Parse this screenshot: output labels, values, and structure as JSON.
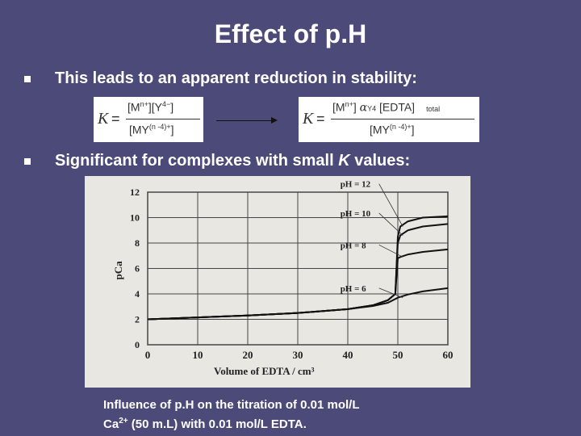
{
  "slide": {
    "title": "Effect of p.H",
    "bullet1": "This leads to an apparent reduction in stability:",
    "bullet2_before": "Significant for complexes with small ",
    "bullet2_k": "K",
    "bullet2_after": " values:",
    "caption_line1": "Influence of p.H on the titration of 0.01 mol/L",
    "caption_ca": "Ca",
    "caption_charge": "2+",
    "caption_line2_rest": " (50 m.L) with 0.01 mol/L EDTA."
  },
  "equations": {
    "left": {
      "k": "K",
      "eq": "=",
      "num_a": "[M",
      "num_a_sup": "n+",
      "num_b": "][Y",
      "num_b_sup": "4−",
      "num_c": "]",
      "den_a": "[MY",
      "den_sup": "(n  -4)+",
      "den_b": "]"
    },
    "right": {
      "k": "K",
      "eq": "=",
      "num_a": "[M",
      "num_a_sup": "n+",
      "num_b": "]",
      "alpha": "α",
      "alpha_sub": "Y4",
      "num_c": "[EDTA]",
      "num_c_sub": "total",
      "den_a": "[MY",
      "den_sup": "(n  -4)+",
      "den_b": "]"
    }
  },
  "chart_data": {
    "type": "line",
    "xlabel": "Volume of EDTA / cm³",
    "ylabel": "pCa",
    "xlim": [
      0,
      60
    ],
    "ylim": [
      0,
      12
    ],
    "x_ticks": [
      0,
      10,
      20,
      30,
      40,
      50,
      60
    ],
    "y_ticks": [
      0,
      2,
      4,
      6,
      8,
      10,
      12
    ],
    "grid": true,
    "series": [
      {
        "name": "pH = 12",
        "x": [
          0,
          10,
          20,
          30,
          40,
          45,
          48,
          49.5,
          50,
          50.5,
          52,
          55,
          60
        ],
        "y": [
          2.0,
          2.15,
          2.3,
          2.5,
          2.8,
          3.1,
          3.5,
          4.0,
          8.5,
          9.3,
          9.7,
          10.0,
          10.1
        ]
      },
      {
        "name": "pH = 10",
        "x": [
          0,
          10,
          20,
          30,
          40,
          45,
          48,
          49.5,
          50,
          50.5,
          52,
          55,
          60
        ],
        "y": [
          2.0,
          2.15,
          2.3,
          2.5,
          2.8,
          3.1,
          3.5,
          4.0,
          8.0,
          8.6,
          9.0,
          9.3,
          9.5
        ]
      },
      {
        "name": "pH = 8",
        "x": [
          0,
          10,
          20,
          30,
          40,
          45,
          48,
          49.5,
          50,
          50.5,
          52,
          55,
          60
        ],
        "y": [
          2.0,
          2.15,
          2.3,
          2.5,
          2.8,
          3.1,
          3.5,
          4.0,
          6.8,
          6.9,
          7.1,
          7.3,
          7.5
        ]
      },
      {
        "name": "pH = 6",
        "x": [
          0,
          10,
          20,
          30,
          40,
          45,
          48,
          50,
          52,
          55,
          60
        ],
        "y": [
          2.0,
          2.15,
          2.3,
          2.5,
          2.8,
          3.05,
          3.3,
          3.7,
          3.95,
          4.2,
          4.45
        ]
      }
    ]
  }
}
